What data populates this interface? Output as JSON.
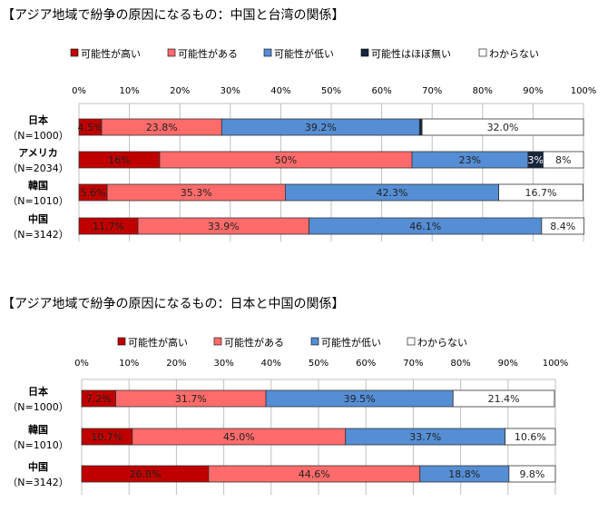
{
  "colors": {
    "high": "#c00000",
    "some": "#ff6b6b",
    "low": "#558ed5",
    "none": "#17263f",
    "unknown": "#ffffff"
  },
  "chart_data": [
    {
      "type": "bar",
      "stacked": true,
      "orientation": "horizontal",
      "title": "【アジア地域で紛争の原因になるもの：中国と台湾の関係】",
      "legend": [
        "可能性が高い",
        "可能性がある",
        "可能性が低い",
        "可能性はほぼ無い",
        "わからない"
      ],
      "legend_keys": [
        "high",
        "some",
        "low",
        "none",
        "unknown"
      ],
      "legend_position": "top",
      "xlim": [
        0,
        100
      ],
      "xticks": [
        "0%",
        "10%",
        "20%",
        "30%",
        "40%",
        "50%",
        "60%",
        "70%",
        "80%",
        "90%",
        "100%"
      ],
      "categories": [
        {
          "name": "日本",
          "n": "（N=1000）"
        },
        {
          "name": "アメリカ",
          "n": "（N=2034）"
        },
        {
          "name": "韓国",
          "n": "（N=1010）"
        },
        {
          "name": "中国",
          "n": "（N=3142）"
        }
      ],
      "series": [
        {
          "name": "可能性が高い",
          "values": [
            4.5,
            16,
            5.6,
            11.7
          ],
          "labels": [
            "4.5%",
            "16%",
            "5.6%",
            "11.7%"
          ]
        },
        {
          "name": "可能性がある",
          "values": [
            23.8,
            50,
            35.3,
            33.9
          ],
          "labels": [
            "23.8%",
            "50%",
            "35.3%",
            "33.9%"
          ]
        },
        {
          "name": "可能性が低い",
          "values": [
            39.2,
            23,
            42.3,
            46.1
          ],
          "labels": [
            "39.2%",
            "23%",
            "42.3%",
            "46.1%"
          ]
        },
        {
          "name": "可能性はほぼ無い",
          "values": [
            0.5,
            3,
            0,
            0
          ],
          "labels": [
            "",
            "3%",
            "",
            ""
          ]
        },
        {
          "name": "わからない",
          "values": [
            32.0,
            8,
            16.7,
            8.4
          ],
          "labels": [
            "32.0%",
            "8%",
            "16.7%",
            "8.4%"
          ]
        }
      ]
    },
    {
      "type": "bar",
      "stacked": true,
      "orientation": "horizontal",
      "title": "【アジア地域で紛争の原因になるもの：日本と中国の関係】",
      "legend": [
        "可能性が高い",
        "可能性がある",
        "可能性が低い",
        "わからない"
      ],
      "legend_keys": [
        "high",
        "some",
        "low",
        "unknown"
      ],
      "legend_position": "top",
      "xlim": [
        0,
        100
      ],
      "xticks": [
        "0%",
        "10%",
        "20%",
        "30%",
        "40%",
        "50%",
        "60%",
        "70%",
        "80%",
        "90%",
        "100%"
      ],
      "categories": [
        {
          "name": "日本",
          "n": "（N=1000）"
        },
        {
          "name": "韓国",
          "n": "（N=1010）"
        },
        {
          "name": "中国",
          "n": "（N=3142）"
        }
      ],
      "series": [
        {
          "name": "可能性が高い",
          "values": [
            7.2,
            10.7,
            26.8
          ],
          "labels": [
            "7.2%",
            "10.7%",
            "26.8%"
          ]
        },
        {
          "name": "可能性がある",
          "values": [
            31.7,
            45.0,
            44.6
          ],
          "labels": [
            "31.7%",
            "45.0%",
            "44.6%"
          ]
        },
        {
          "name": "可能性が低い",
          "values": [
            39.5,
            33.7,
            18.8
          ],
          "labels": [
            "39.5%",
            "33.7%",
            "18.8%"
          ]
        },
        {
          "name": "わからない",
          "values": [
            21.4,
            10.6,
            9.8
          ],
          "labels": [
            "21.4%",
            "10.6%",
            "9.8%"
          ]
        }
      ]
    }
  ]
}
